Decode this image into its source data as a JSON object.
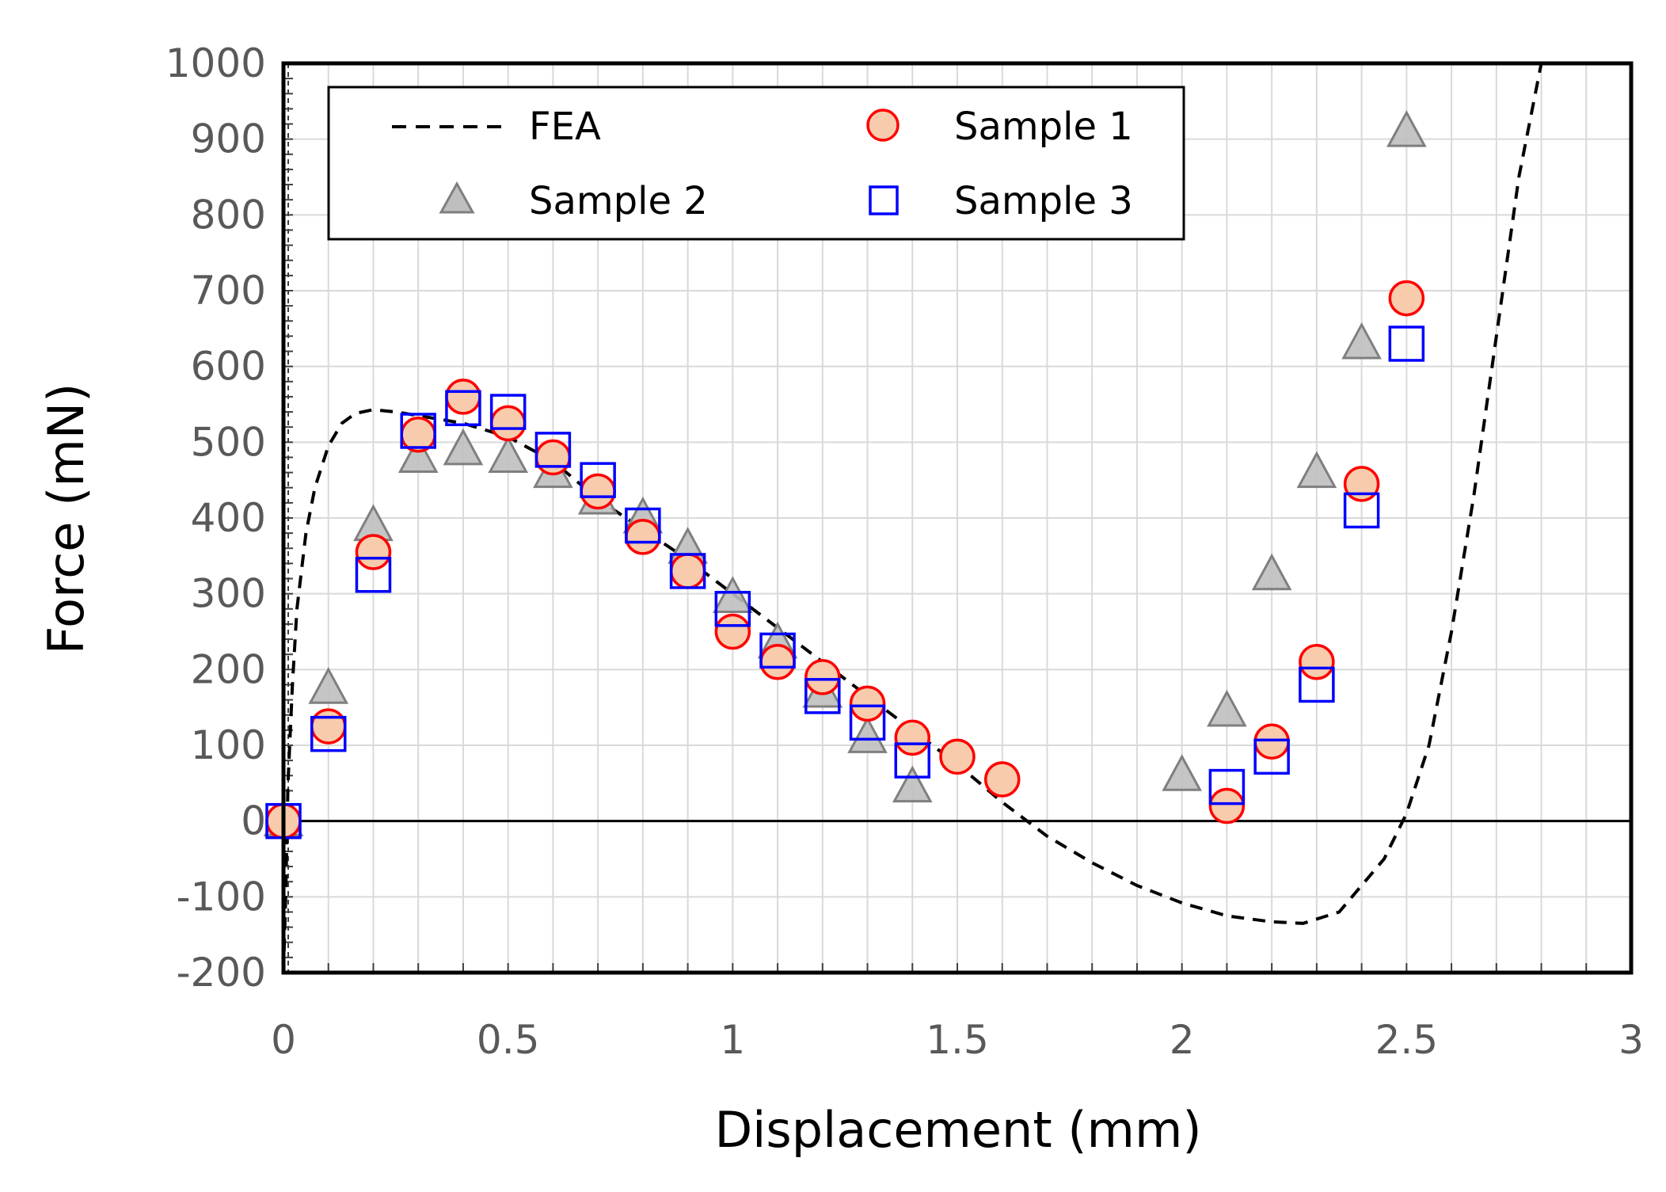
{
  "chart_data": {
    "type": "scatter",
    "title": "",
    "xlabel": "Displacement (mm)",
    "ylabel": "Force (mN)",
    "xlim": [
      0,
      3
    ],
    "ylim": [
      -200,
      1000
    ],
    "x_ticks": [
      0,
      0.5,
      1,
      1.5,
      2,
      2.5,
      3
    ],
    "x_tick_labels": [
      "0",
      "0.5",
      "1",
      "1.5",
      "2",
      "2.5",
      "3"
    ],
    "y_ticks": [
      -200,
      -100,
      0,
      100,
      200,
      300,
      400,
      500,
      600,
      700,
      800,
      900,
      1000
    ],
    "y_tick_labels": [
      "-200",
      "-100",
      "0",
      "100",
      "200",
      "300",
      "400",
      "500",
      "600",
      "700",
      "800",
      "900",
      "1000"
    ],
    "grid": true,
    "legend_position": "top-left",
    "series": [
      {
        "name": "FEA",
        "kind": "line",
        "style": "dashed",
        "color": "#000000",
        "x": [
          0,
          0.005,
          0.01,
          0.02,
          0.03,
          0.05,
          0.07,
          0.1,
          0.13,
          0.16,
          0.2,
          0.25,
          0.3,
          0.35,
          0.4,
          0.5,
          0.6,
          0.7,
          0.8,
          0.9,
          1.0,
          1.1,
          1.2,
          1.3,
          1.4,
          1.5,
          1.6,
          1.7,
          1.8,
          1.9,
          2.0,
          2.1,
          2.2,
          2.27,
          2.35,
          2.45,
          2.5,
          2.55,
          2.6,
          2.65,
          2.7,
          2.75,
          2.8
        ],
        "y": [
          -200,
          -100,
          50,
          180,
          280,
          380,
          440,
          495,
          525,
          538,
          543,
          540,
          535,
          530,
          525,
          507,
          475,
          425,
          385,
          345,
          300,
          255,
          210,
          165,
          120,
          75,
          25,
          -20,
          -55,
          -85,
          -108,
          -125,
          -133,
          -135,
          -120,
          -50,
          10,
          100,
          250,
          430,
          640,
          850,
          1000
        ]
      },
      {
        "name": "Sample 1",
        "kind": "scatter",
        "marker": "circle",
        "color": "#ff0000",
        "fill": "#f8cbad",
        "x": [
          0,
          0.1,
          0.2,
          0.3,
          0.4,
          0.5,
          0.6,
          0.7,
          0.8,
          0.9,
          1.0,
          1.1,
          1.2,
          1.3,
          1.4,
          1.5,
          1.6,
          2.1,
          2.2,
          2.3,
          2.4,
          2.5
        ],
        "y": [
          0,
          125,
          355,
          510,
          560,
          525,
          480,
          435,
          375,
          330,
          250,
          210,
          190,
          155,
          110,
          85,
          55,
          20,
          105,
          210,
          445,
          690
        ]
      },
      {
        "name": "Sample 2",
        "kind": "scatter",
        "marker": "triangle",
        "color": "#7f7f7f",
        "fill": "#bfbfbf",
        "x": [
          0,
          0.1,
          0.2,
          0.3,
          0.4,
          0.5,
          0.6,
          0.7,
          0.8,
          0.9,
          1.0,
          1.1,
          1.2,
          1.3,
          1.4,
          2.0,
          2.1,
          2.2,
          2.3,
          2.4,
          2.5
        ],
        "y": [
          0,
          175,
          390,
          480,
          490,
          480,
          460,
          425,
          400,
          360,
          295,
          235,
          170,
          110,
          45,
          60,
          145,
          325,
          460,
          630,
          910
        ]
      },
      {
        "name": "Sample 3",
        "kind": "scatter",
        "marker": "square",
        "color": "#0000ff",
        "fill": "none",
        "x": [
          0,
          0.1,
          0.2,
          0.3,
          0.4,
          0.5,
          0.6,
          0.7,
          0.8,
          0.9,
          1.0,
          1.1,
          1.2,
          1.3,
          1.4,
          2.1,
          2.2,
          2.3,
          2.4,
          2.5
        ],
        "y": [
          0,
          115,
          325,
          515,
          545,
          540,
          490,
          450,
          390,
          330,
          280,
          225,
          165,
          130,
          80,
          45,
          85,
          180,
          410,
          630
        ]
      }
    ],
    "legend": {
      "row1": [
        "FEA",
        "Sample 1"
      ],
      "row2": [
        "Sample 2",
        "Sample 3"
      ]
    }
  }
}
